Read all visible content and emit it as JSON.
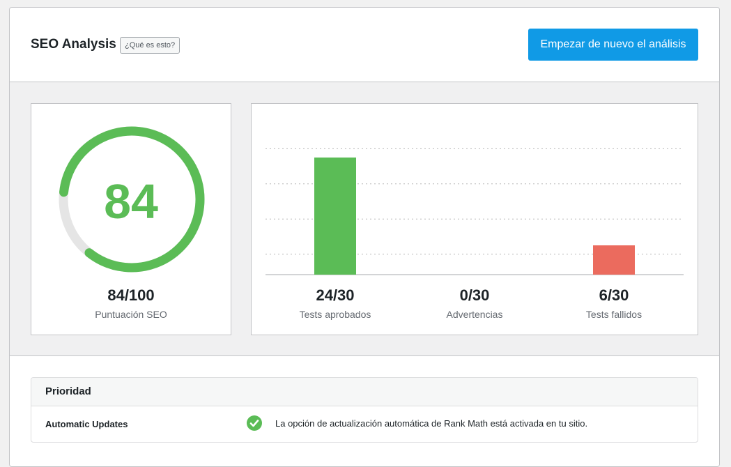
{
  "header": {
    "title": "SEO Analysis",
    "what_is_label": "¿Qué es esto?",
    "restart_label": "Empezar de nuevo el análisis"
  },
  "score": {
    "value": "84",
    "fraction": "84/100",
    "label": "Puntuación SEO",
    "percent": 84,
    "color": "#5bbc56"
  },
  "chart_data": {
    "type": "bar",
    "categories": [
      "Tests aprobados",
      "Advertencias",
      "Tests fallidos"
    ],
    "values": [
      24,
      0,
      6
    ],
    "value_labels": [
      "24/30",
      "0/30",
      "6/30"
    ],
    "max": 30,
    "colors": [
      "#5bbc56",
      "#f0b849",
      "#eb6b5e"
    ],
    "grid": true
  },
  "priority": {
    "heading": "Prioridad",
    "rows": [
      {
        "name": "Automatic Updates",
        "icon": "check-circle-icon",
        "message": "La opción de actualización automática de Rank Math está activada en tu sitio."
      }
    ]
  }
}
